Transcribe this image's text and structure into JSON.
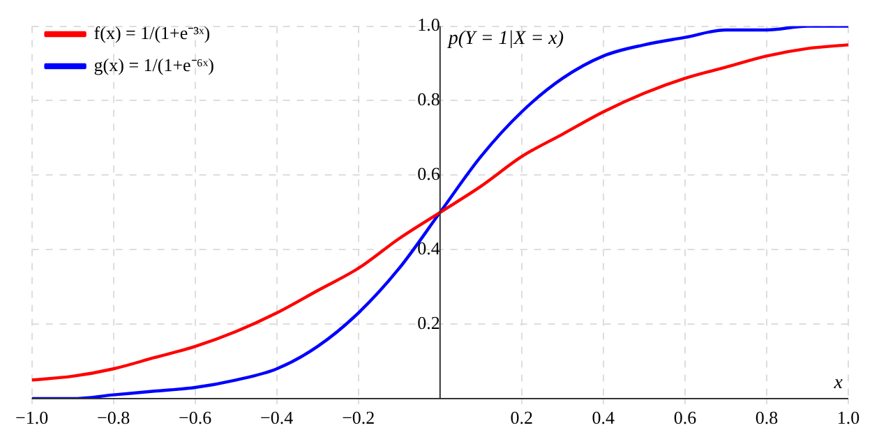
{
  "chart_data": {
    "type": "line",
    "xlabel": "x",
    "ylabel": "p(Y = 1|X = x)",
    "x": [
      -1,
      -0.9,
      -0.8,
      -0.7,
      -0.6,
      -0.5,
      -0.4,
      -0.3,
      -0.2,
      -0.1,
      0,
      0.1,
      0.2,
      0.3,
      0.4,
      0.5,
      0.6,
      0.7,
      0.8,
      0.9,
      1
    ],
    "series": [
      {
        "name": "f(x) = 1/(1+e⁻³ˣ)",
        "color": "#ff0000",
        "values": [
          0.05,
          0.06,
          0.08,
          0.11,
          0.14,
          0.18,
          0.23,
          0.29,
          0.35,
          0.43,
          0.5,
          0.57,
          0.65,
          0.71,
          0.77,
          0.82,
          0.86,
          0.89,
          0.92,
          0.94,
          0.95
        ]
      },
      {
        "name": "g(x) = 1/(1+e⁻⁶ˣ)",
        "color": "#0000ff",
        "values": [
          0,
          0,
          0.01,
          0.02,
          0.03,
          0.05,
          0.08,
          0.14,
          0.23,
          0.35,
          0.5,
          0.65,
          0.77,
          0.86,
          0.92,
          0.95,
          0.97,
          0.99,
          0.99,
          1,
          1
        ]
      }
    ],
    "xlim": [
      -1,
      1
    ],
    "ylim": [
      0,
      1
    ],
    "xticks": [
      {
        "value": -1,
        "label": "−1.0"
      },
      {
        "value": -0.8,
        "label": "−0.8"
      },
      {
        "value": -0.6,
        "label": "−0.6"
      },
      {
        "value": -0.4,
        "label": "−0.4"
      },
      {
        "value": -0.2,
        "label": "−0.2"
      },
      0.2,
      0.4,
      0.6,
      0.8,
      {
        "value": 1,
        "label": "1.0"
      }
    ],
    "yticks": [
      0.2,
      0.4,
      0.6,
      0.8,
      {
        "value": 1,
        "label": "1.0"
      }
    ],
    "grid": true,
    "legend": "top left",
    "marker": "none",
    "line_style": "solid"
  }
}
